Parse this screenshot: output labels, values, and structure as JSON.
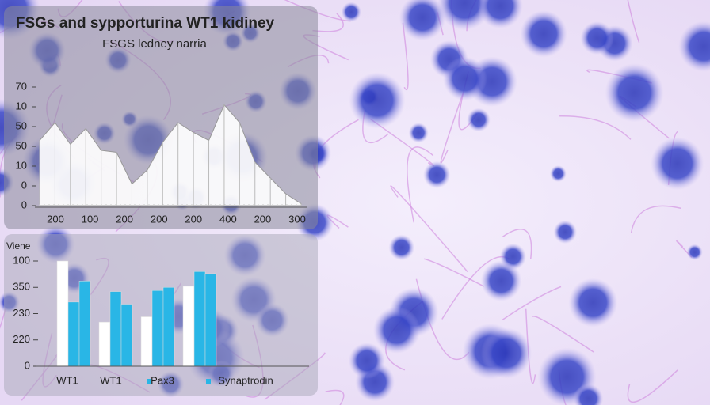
{
  "chart_data": [
    {
      "type": "area",
      "title": "FSGs and sypporturina WT1 kidiney",
      "subtitle": "FSGS ledney narria",
      "values": [
        33,
        42,
        31,
        39,
        28,
        27,
        11,
        18,
        32,
        42,
        37,
        33,
        51,
        42,
        22,
        14,
        6,
        1
      ],
      "x_labels": [
        "200",
        "100",
        "200",
        "200",
        "200",
        "400",
        "200",
        "300"
      ],
      "ylim": [
        0,
        60
      ],
      "yticks": [
        {
          "value": 60,
          "label": "70"
        },
        {
          "value": 50,
          "label": "10"
        },
        {
          "value": 40,
          "label": "50"
        },
        {
          "value": 30,
          "label": "50"
        },
        {
          "value": 20,
          "label": "10"
        },
        {
          "value": 10,
          "label": "0"
        },
        0
      ],
      "color": "#ffffff"
    },
    {
      "type": "bar",
      "ylabel": "Viene",
      "categories": [
        "WT1",
        "WT1",
        "Pax3",
        "Synaptrodin"
      ],
      "series": [
        {
          "color": "#ffffff",
          "values": [
            100,
            42,
            47,
            76
          ]
        },
        {
          "color": "#29b6e6",
          "values": [
            61,
            71,
            72,
            90
          ]
        },
        {
          "color": "#29b6e6",
          "values": [
            81,
            59,
            75,
            88
          ]
        }
      ],
      "ylim": [
        0,
        100
      ],
      "yticks": [
        100,
        {
          "value": 75,
          "label": "350"
        },
        {
          "value": 50,
          "label": "230"
        },
        {
          "value": 25,
          "label": "220"
        },
        0
      ]
    }
  ]
}
